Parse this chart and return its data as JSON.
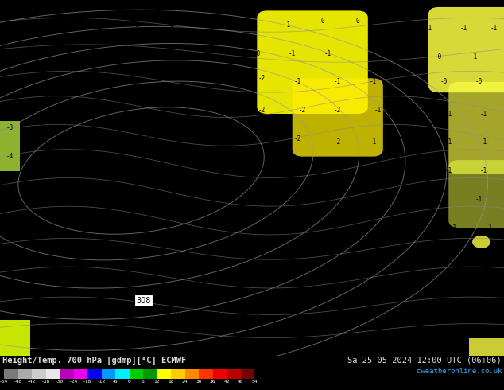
{
  "title_left": "Height/Temp. 700 hPa [gdmp][°C] ECMWF",
  "title_right": "Sa 25-05-2024 12:00 UTC (06+06)",
  "credit": "©weatheronline.co.uk",
  "colorbar_colors": [
    "#7a7a7a",
    "#aaaaaa",
    "#cccccc",
    "#e8e8e8",
    "#bb00bb",
    "#ee00ee",
    "#0000ee",
    "#0099ff",
    "#00eeff",
    "#00cc00",
    "#009900",
    "#ffff00",
    "#ffcc00",
    "#ff8800",
    "#ff3300",
    "#ee0000",
    "#bb0000",
    "#770000"
  ],
  "bottom_label_values": [
    "-54",
    "-48",
    "-42",
    "-38",
    "-30",
    "-24",
    "-18",
    "-12",
    "-6",
    "0",
    "6",
    "12",
    "18",
    "24",
    "30",
    "36",
    "42",
    "48",
    "54"
  ],
  "fig_width": 6.34,
  "fig_height": 4.9,
  "map_green": "#33bb33",
  "map_yellow": "#ffff00",
  "map_light_yellow": "#eeee44",
  "contour_color": "#888888",
  "text_color": "#dddddd",
  "credit_color": "#33aaff",
  "bg_color": "#000000"
}
